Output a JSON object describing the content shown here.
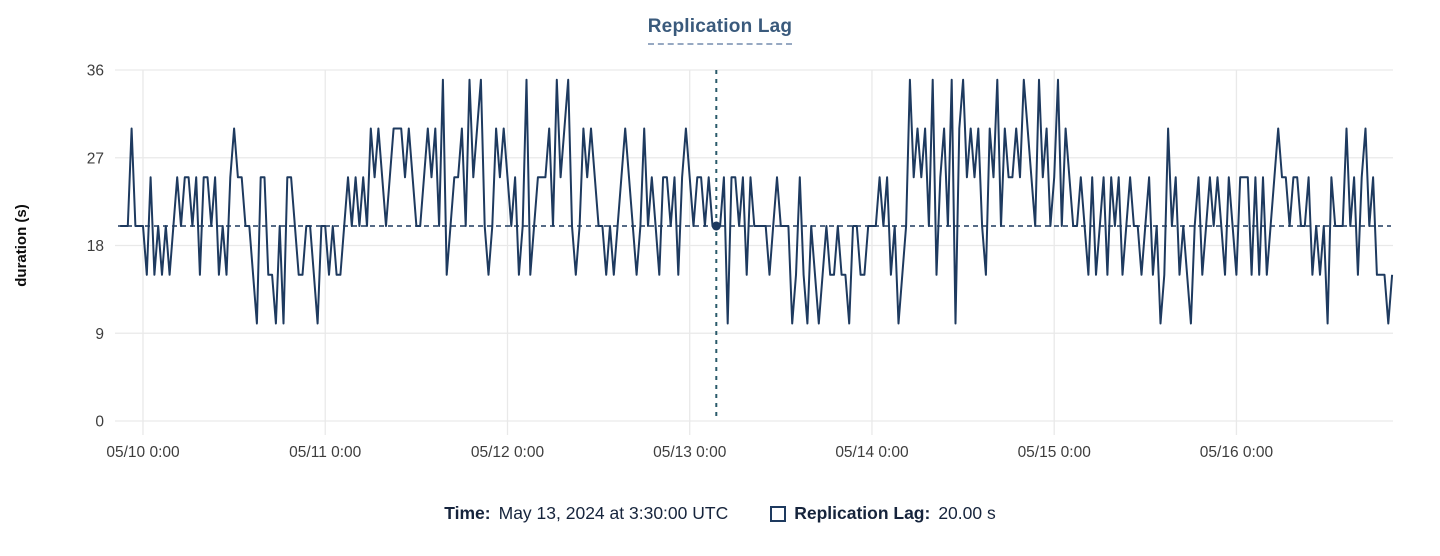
{
  "header": {
    "title": "Replication Lag"
  },
  "footer": {
    "time_label": "Time:",
    "time_value": "May 13, 2024 at 3:30:00 UTC",
    "series_label": "Replication Lag:",
    "series_value": "20.00 s"
  },
  "colors": {
    "series_line": "#1e3a5f",
    "crosshair_vertical": "#2a5a6a",
    "crosshair_horizontal": "#1e3a5f",
    "selection_dot": "#1e3a5f",
    "grid": "#e9e9e9",
    "title_text": "#3a5a7c",
    "title_underline": "#97a9c2",
    "footer_text": "#16243c",
    "tick_text": "#3d3d3d"
  },
  "chart_data": {
    "type": "line",
    "title": "Replication Lag",
    "xlabel": "",
    "ylabel": "duration (s)",
    "ylim": [
      0,
      36
    ],
    "yticks": [
      0,
      9,
      18,
      27,
      36
    ],
    "grid": "on",
    "legend_position": "bottom",
    "x_tick_labels": [
      "05/10 0:00",
      "05/11 0:00",
      "05/12 0:00",
      "05/13 0:00",
      "05/14 0:00",
      "05/15 0:00",
      "05/16 0:00"
    ],
    "x_start_label": "05/09 21:00",
    "start_offset_hours": -3,
    "step_minutes": 30,
    "crosshair": {
      "time_label": "May 13, 2024 at 3:30:00 UTC",
      "hours_from_first_tick": 75.5,
      "value": 20,
      "value_label": "20.00 s"
    },
    "series": [
      {
        "name": "Replication Lag",
        "values": [
          20,
          20,
          20,
          30,
          20,
          20,
          20,
          15,
          25,
          15,
          20,
          15,
          20,
          15,
          20,
          25,
          20,
          25,
          25,
          20,
          25,
          15,
          25,
          25,
          20,
          25,
          15,
          20,
          15,
          25,
          30,
          25,
          25,
          20,
          20,
          15,
          10,
          25,
          25,
          15,
          15,
          10,
          20,
          10,
          25,
          25,
          20,
          15,
          15,
          20,
          20,
          15,
          10,
          20,
          20,
          15,
          20,
          15,
          15,
          20,
          25,
          20,
          25,
          20,
          25,
          20,
          30,
          25,
          30,
          25,
          20,
          25,
          30,
          30,
          30,
          25,
          30,
          25,
          20,
          20,
          25,
          30,
          25,
          30,
          20,
          35,
          15,
          20,
          25,
          25,
          30,
          20,
          35,
          25,
          30,
          35,
          20,
          15,
          20,
          30,
          25,
          30,
          25,
          20,
          25,
          15,
          20,
          35,
          15,
          20,
          25,
          25,
          25,
          30,
          20,
          35,
          25,
          30,
          35,
          20,
          15,
          20,
          30,
          25,
          30,
          25,
          20,
          20,
          15,
          20,
          15,
          20,
          25,
          30,
          25,
          20,
          15,
          20,
          30,
          20,
          25,
          20,
          15,
          25,
          25,
          20,
          25,
          15,
          25,
          30,
          25,
          20,
          25,
          25,
          20,
          25,
          20,
          20,
          20,
          25,
          10,
          25,
          25,
          20,
          25,
          15,
          25,
          20,
          20,
          20,
          20,
          15,
          20,
          25,
          20,
          20,
          20,
          10,
          15,
          25,
          15,
          10,
          20,
          15,
          10,
          15,
          20,
          15,
          15,
          20,
          15,
          15,
          10,
          20,
          20,
          15,
          15,
          20,
          20,
          20,
          25,
          20,
          25,
          15,
          20,
          10,
          15,
          20,
          35,
          25,
          30,
          25,
          30,
          20,
          35,
          15,
          25,
          30,
          20,
          35,
          10,
          30,
          35,
          25,
          30,
          25,
          30,
          20,
          15,
          30,
          25,
          35,
          20,
          30,
          25,
          25,
          30,
          25,
          35,
          30,
          25,
          20,
          35,
          25,
          30,
          20,
          25,
          35,
          20,
          30,
          25,
          20,
          20,
          25,
          20,
          15,
          25,
          15,
          20,
          25,
          15,
          25,
          20,
          25,
          15,
          20,
          25,
          20,
          20,
          15,
          20,
          25,
          15,
          20,
          10,
          15,
          30,
          20,
          25,
          15,
          20,
          15,
          10,
          20,
          25,
          15,
          20,
          25,
          20,
          25,
          20,
          15,
          25,
          20,
          15,
          25,
          25,
          25,
          15,
          25,
          15,
          25,
          15,
          20,
          25,
          30,
          25,
          25,
          20,
          25,
          25,
          20,
          20,
          25,
          15,
          20,
          15,
          20,
          10,
          25,
          20,
          20,
          20,
          30,
          20,
          25,
          15,
          25,
          30,
          20,
          25,
          15,
          15,
          15,
          10,
          15
        ]
      }
    ]
  }
}
